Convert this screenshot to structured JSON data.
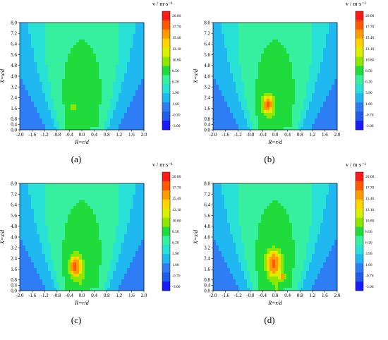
{
  "chart_data": [
    {
      "type": "heatmap",
      "panel_label": "(a)",
      "xlabel": "R=r/d",
      "ylabel": "X=x/d",
      "xlim": [
        -2.0,
        2.0
      ],
      "ylim": [
        0.0,
        8.0
      ],
      "xticks": [
        "-2.0",
        "-1.6",
        "-1.2",
        "-0.8",
        "-0.4",
        "0.0",
        "0.4",
        "0.8",
        "1.2",
        "1.6",
        "2.0"
      ],
      "yticks": [
        "0.0",
        "0.4",
        "0.8",
        "1.6",
        "2.4",
        "3.2",
        "4.0",
        "4.8",
        "5.6",
        "6.4",
        "7.2",
        "8.0"
      ],
      "colorbar": {
        "title": "v / m·s⁻¹",
        "levels": [
          "20.00",
          "17.70",
          "15.40",
          "13.10",
          "10.80",
          "8.50",
          "6.20",
          "3.90",
          "1.60",
          "-0.70",
          "-3.00"
        ]
      },
      "core": {
        "x": -0.28,
        "y": 1.75,
        "peak": 13.0,
        "sx": 0.09,
        "sy": 0.22
      }
    },
    {
      "type": "heatmap",
      "panel_label": "(b)",
      "xlabel": "R=r/d",
      "ylabel": "X=x/d",
      "xlim": [
        -2.0,
        2.0
      ],
      "ylim": [
        0.0,
        8.0
      ],
      "xticks": [
        "-2.0",
        "-1.6",
        "-1.2",
        "-0.8",
        "-0.4",
        "0.0",
        "0.4",
        "0.8",
        "1.2",
        "1.6",
        "2.0"
      ],
      "yticks": [
        "0.0",
        "0.4",
        "0.8",
        "1.6",
        "2.4",
        "3.2",
        "4.0",
        "4.8",
        "5.6",
        "6.4",
        "7.2",
        "8.0"
      ],
      "colorbar": {
        "title": "v / m·s⁻¹",
        "levels": [
          "20.00",
          "17.70",
          "15.40",
          "13.10",
          "10.80",
          "8.50",
          "6.20",
          "3.90",
          "1.60",
          "-0.70",
          "-3.00"
        ]
      },
      "core": {
        "x": -0.25,
        "y": 1.9,
        "peak": 18.5,
        "sx": 0.15,
        "sy": 0.55
      }
    },
    {
      "type": "heatmap",
      "panel_label": "(c)",
      "xlabel": "R=r/d",
      "ylabel": "X=x/d",
      "xlim": [
        -2.0,
        2.0
      ],
      "ylim": [
        0.0,
        8.0
      ],
      "xticks": [
        "-2.0",
        "-1.6",
        "-1.2",
        "-0.8",
        "-0.4",
        "0.0",
        "0.4",
        "0.8",
        "1.2",
        "1.6",
        "2.0"
      ],
      "yticks": [
        "0.0",
        "0.4",
        "0.8",
        "1.6",
        "2.4",
        "3.2",
        "4.0",
        "4.8",
        "5.6",
        "6.4",
        "7.2",
        "8.0"
      ],
      "colorbar": {
        "title": "v / m·s⁻¹",
        "levels": [
          "20.00",
          "17.70",
          "15.40",
          "13.10",
          "10.80",
          "8.50",
          "6.20",
          "3.90",
          "1.60",
          "-0.70",
          "-3.00"
        ]
      },
      "core": {
        "x": -0.22,
        "y": 1.85,
        "peak": 18.8,
        "sx": 0.16,
        "sy": 0.65
      }
    },
    {
      "type": "heatmap",
      "panel_label": "(d)",
      "xlabel": "R=r/d",
      "ylabel": "X=x/d",
      "xlim": [
        -2.0,
        2.0
      ],
      "ylim": [
        0.0,
        8.0
      ],
      "xticks": [
        "-2.0",
        "-1.6",
        "-1.2",
        "-0.8",
        "-0.4",
        "0.0",
        "0.4",
        "0.8",
        "1.2",
        "1.6",
        "2.0"
      ],
      "yticks": [
        "0.0",
        "0.4",
        "0.8",
        "1.6",
        "2.4",
        "3.2",
        "4.0",
        "4.8",
        "5.6",
        "6.4",
        "7.2",
        "8.0"
      ],
      "colorbar": {
        "title": "v / m·s⁻¹",
        "levels": [
          "20.00",
          "17.70",
          "15.40",
          "13.10",
          "10.80",
          "8.50",
          "6.20",
          "3.90",
          "1.60",
          "-0.70",
          "-3.00"
        ]
      },
      "core": {
        "x": -0.05,
        "y": 2.1,
        "peak": 18.5,
        "sx": 0.2,
        "sy": 0.75
      },
      "secondary_core": {
        "x": 0.25,
        "y": 1.05,
        "peak": 15.5,
        "sx": 0.07,
        "sy": 0.18
      }
    }
  ],
  "colors": {
    "background": "#2f7df4",
    "scale": [
      "#1a1aff",
      "#1e5ee6",
      "#2f7df4",
      "#1fb8f0",
      "#27e0d6",
      "#36f0a0",
      "#1fdc3c",
      "#8fe600",
      "#d9f000",
      "#ffd400",
      "#ff9a00",
      "#ff5a00",
      "#ff1a1a"
    ]
  }
}
